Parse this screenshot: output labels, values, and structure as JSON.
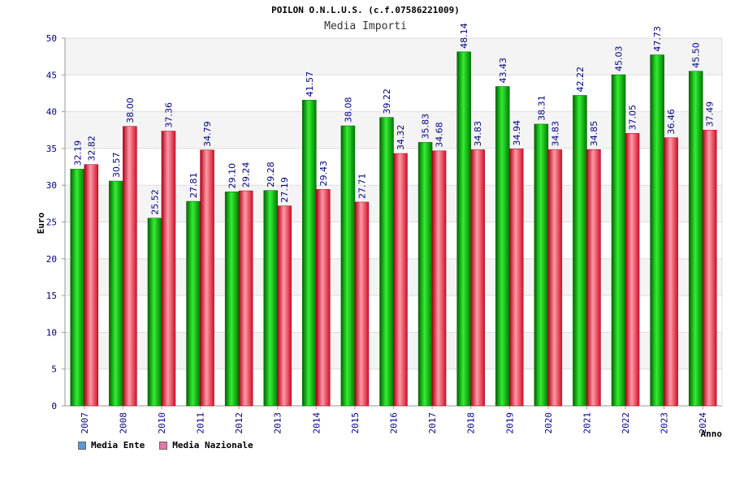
{
  "title": "POILON O.N.L.U.S. (c.f.07586221009)",
  "subtitle": "Media Importi",
  "legend": [
    {
      "label": "Media Ente",
      "color": "#5b9bd5"
    },
    {
      "label": "Media Nazionale",
      "color": "#e377a8"
    }
  ],
  "colors": {
    "series1": "#00a000",
    "series2": "#e8202e",
    "axis_text": "#000080",
    "label_text": "#000080"
  },
  "chart_data": {
    "type": "bar",
    "xlabel": "Anno",
    "ylabel": "Euro",
    "ylim": [
      0,
      50
    ],
    "yticks": [
      0,
      5,
      10,
      15,
      20,
      25,
      30,
      35,
      40,
      45,
      50
    ],
    "categories": [
      "2007",
      "2008",
      "2010",
      "2011",
      "2012",
      "2013",
      "2014",
      "2015",
      "2016",
      "2017",
      "2018",
      "2019",
      "2020",
      "2021",
      "2022",
      "2023",
      "2024"
    ],
    "series": [
      {
        "name": "Media Ente",
        "values": [
          32.19,
          30.57,
          25.52,
          27.81,
          29.1,
          29.28,
          41.57,
          38.08,
          39.22,
          35.83,
          48.14,
          43.43,
          38.31,
          42.22,
          45.03,
          47.73,
          45.5
        ],
        "labels": [
          "32.19",
          "30.57",
          "25.52",
          "27.81",
          "29.10",
          "29.28",
          "41.57",
          "38.08",
          "39.22",
          "35.83",
          "48.14",
          "43.43",
          "38.31",
          "42.22",
          "45.03",
          "47.73",
          "45.50"
        ]
      },
      {
        "name": "Media Nazionale",
        "values": [
          32.82,
          38.0,
          37.36,
          34.79,
          29.24,
          27.19,
          29.43,
          27.71,
          34.32,
          34.68,
          34.83,
          34.94,
          34.83,
          34.85,
          37.05,
          36.46,
          37.49
        ],
        "labels": [
          "32.82",
          "38.00",
          "37.36",
          "34.79",
          "29.24",
          "27.19",
          "29.43",
          "27.71",
          "34.32",
          "34.68",
          "34.83",
          "34.94",
          "34.83",
          "34.85",
          "37.05",
          "36.46",
          "37.49"
        ]
      }
    ]
  }
}
